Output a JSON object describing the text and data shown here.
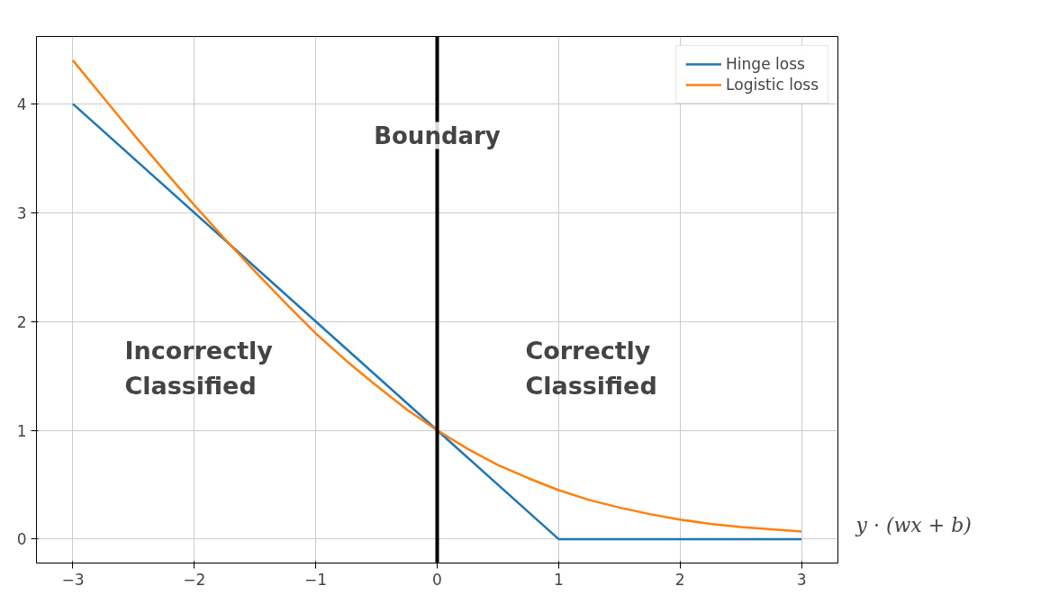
{
  "chart_data": {
    "type": "line",
    "xlabel": "y · (wx + b)",
    "xlim": [
      -3.3,
      3.3
    ],
    "xticks": [
      {
        "value": -3,
        "label": "−3"
      },
      {
        "value": -2,
        "label": "−2"
      },
      {
        "value": -1,
        "label": "−1"
      },
      0,
      1,
      2,
      3
    ],
    "ylim": [
      -0.22,
      4.62
    ],
    "yticks": [
      0,
      1,
      2,
      3,
      4
    ],
    "series": [
      {
        "name": "Hinge loss",
        "color": "#1f77b4",
        "x": [
          -3,
          1,
          3
        ],
        "values": [
          4,
          0,
          0
        ]
      },
      {
        "name": "Logistic loss",
        "color": "#ff7f0e",
        "x": [
          -3,
          -2.75,
          -2.5,
          -2.25,
          -2,
          -1.75,
          -1.5,
          -1.25,
          -1,
          -0.75,
          -0.5,
          -0.25,
          0,
          0.25,
          0.5,
          0.75,
          1,
          1.25,
          1.5,
          1.75,
          2,
          2.25,
          2.5,
          2.75,
          3
        ],
        "values": [
          4.4,
          4.06,
          3.72,
          3.39,
          3.07,
          2.76,
          2.46,
          2.17,
          1.89,
          1.64,
          1.41,
          1.19,
          1.0,
          0.83,
          0.68,
          0.56,
          0.45,
          0.36,
          0.29,
          0.23,
          0.18,
          0.14,
          0.11,
          0.09,
          0.07
        ]
      }
    ],
    "ref_lines": [
      {
        "axis": "x",
        "value": 0,
        "label": "Boundary",
        "color": "#000000"
      }
    ],
    "annotations": [
      "Incorrectly\nClassified",
      "Correctly\nClassified"
    ],
    "grid": true,
    "legend": "top right",
    "line_style": "solid",
    "marker": "none"
  }
}
